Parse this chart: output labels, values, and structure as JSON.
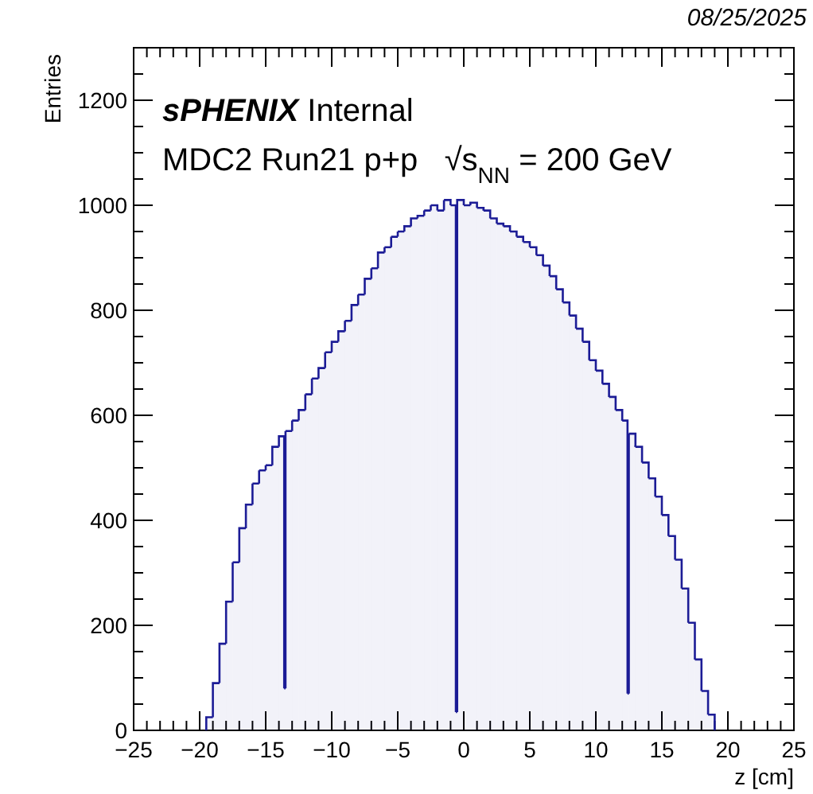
{
  "chart_data": {
    "type": "histogram",
    "title": "sPHENIX Internal",
    "subtitle": "MDC2 Run21 p+p   √s$_{NN}$ = 200 GeV",
    "xlabel": "z [cm]",
    "ylabel": "Entries",
    "annotations": [
      "08/25/2025"
    ],
    "color": "#1c1c96",
    "bins": [
      -19.5,
      -19,
      -18.5,
      -18,
      -17.5,
      -17,
      -16.5,
      -16,
      -15.5,
      -15,
      -14.5,
      -14,
      -13.6,
      -13.5,
      -13,
      -12.5,
      -12,
      -11.5,
      -11,
      -10.5,
      -10,
      -9.5,
      -9,
      -8.5,
      -8,
      -7.5,
      -7,
      -6.5,
      -6,
      -5.5,
      -5,
      -4.5,
      -4,
      -3.5,
      -3,
      -2.5,
      -2,
      -1.5,
      -1,
      -0.6,
      -0.5,
      0,
      0.5,
      1,
      1.5,
      2,
      2.5,
      3,
      3.5,
      4,
      4.5,
      5,
      5.5,
      6,
      6.5,
      7,
      7.5,
      8,
      8.5,
      9,
      9.5,
      10,
      10.5,
      11,
      11.5,
      12,
      12.4,
      12.5,
      13,
      13.5,
      14,
      14.5,
      15,
      15.5,
      16,
      16.5,
      17,
      17.5,
      18,
      18.5,
      19
    ],
    "values": [
      25,
      90,
      165,
      245,
      320,
      385,
      430,
      470,
      495,
      505,
      540,
      560,
      80,
      570,
      590,
      610,
      640,
      670,
      690,
      720,
      740,
      760,
      780,
      810,
      830,
      860,
      880,
      910,
      920,
      940,
      950,
      960,
      975,
      980,
      990,
      1000,
      990,
      1010,
      1000,
      35,
      1010,
      1000,
      1005,
      995,
      990,
      975,
      965,
      960,
      950,
      940,
      930,
      920,
      905,
      885,
      865,
      840,
      815,
      790,
      765,
      740,
      705,
      685,
      660,
      635,
      610,
      590,
      70,
      565,
      540,
      510,
      480,
      445,
      410,
      370,
      325,
      270,
      205,
      135,
      75,
      30
    ],
    "xlim": [
      -25,
      25
    ],
    "xticks": [
      -25,
      {
        "value": -24,
        "label": null
      },
      {
        "value": -23,
        "label": null
      },
      {
        "value": -22,
        "label": null
      },
      {
        "value": -21,
        "label": null
      },
      -20,
      {
        "value": -19,
        "label": null
      },
      {
        "value": -18,
        "label": null
      },
      {
        "value": -17,
        "label": null
      },
      {
        "value": -16,
        "label": null
      },
      -15,
      {
        "value": -14,
        "label": null
      },
      {
        "value": -13,
        "label": null
      },
      {
        "value": -12,
        "label": null
      },
      {
        "value": -11,
        "label": null
      },
      -10,
      {
        "value": -9,
        "label": null
      },
      {
        "value": -8,
        "label": null
      },
      {
        "value": -7,
        "label": null
      },
      {
        "value": -6,
        "label": null
      },
      -5,
      {
        "value": -4,
        "label": null
      },
      {
        "value": -3,
        "label": null
      },
      {
        "value": -2,
        "label": null
      },
      {
        "value": -1,
        "label": null
      },
      0,
      {
        "value": 1,
        "label": null
      },
      {
        "value": 2,
        "label": null
      },
      {
        "value": 3,
        "label": null
      },
      {
        "value": 4,
        "label": null
      },
      5,
      {
        "value": 6,
        "label": null
      },
      {
        "value": 7,
        "label": null
      },
      {
        "value": 8,
        "label": null
      },
      {
        "value": 9,
        "label": null
      },
      10,
      {
        "value": 11,
        "label": null
      },
      {
        "value": 12,
        "label": null
      },
      {
        "value": 13,
        "label": null
      },
      {
        "value": 14,
        "label": null
      },
      15,
      {
        "value": 16,
        "label": null
      },
      {
        "value": 17,
        "label": null
      },
      {
        "value": 18,
        "label": null
      },
      {
        "value": 19,
        "label": null
      },
      20,
      {
        "value": 21,
        "label": null
      },
      {
        "value": 22,
        "label": null
      },
      {
        "value": 23,
        "label": null
      },
      {
        "value": 24,
        "label": null
      },
      25
    ],
    "ylim": [
      0,
      1300
    ],
    "yticks": [
      0,
      {
        "value": 50,
        "label": null
      },
      {
        "value": 100,
        "label": null
      },
      {
        "value": 150,
        "label": null
      },
      200,
      {
        "value": 250,
        "label": null
      },
      {
        "value": 300,
        "label": null
      },
      {
        "value": 350,
        "label": null
      },
      400,
      {
        "value": 450,
        "label": null
      },
      {
        "value": 500,
        "label": null
      },
      {
        "value": 550,
        "label": null
      },
      600,
      {
        "value": 650,
        "label": null
      },
      {
        "value": 700,
        "label": null
      },
      {
        "value": 750,
        "label": null
      },
      800,
      {
        "value": 850,
        "label": null
      },
      {
        "value": 900,
        "label": null
      },
      {
        "value": 950,
        "label": null
      },
      1000,
      {
        "value": 1050,
        "label": null
      },
      {
        "value": 1100,
        "label": null
      },
      {
        "value": 1150,
        "label": null
      },
      1200,
      {
        "value": 1250,
        "label": null
      },
      {
        "value": 1300,
        "label": null
      }
    ],
    "grid": false
  }
}
